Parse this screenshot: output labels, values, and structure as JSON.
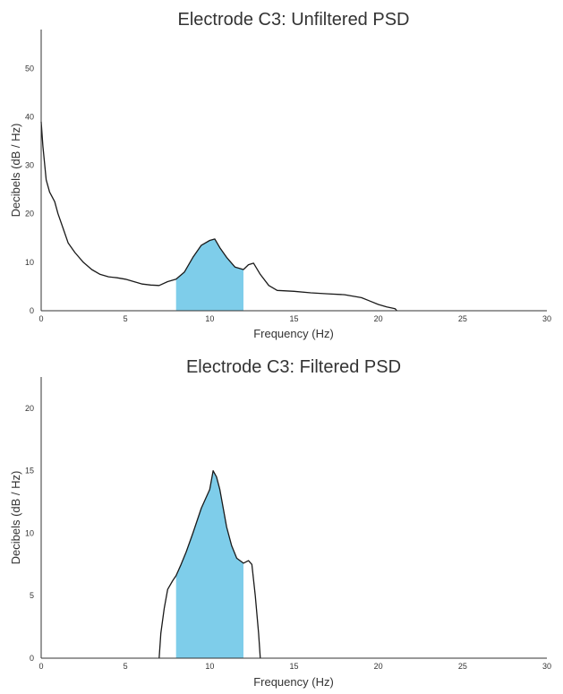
{
  "colors": {
    "band_fill": "#7ecdea",
    "line": "#1a1a1a",
    "axis": "#333333"
  },
  "chart_data": [
    {
      "type": "line",
      "title": "Electrode C3: Unfiltered PSD",
      "xlabel": "Frequency (Hz)",
      "ylabel": "Decibels (dB / Hz)",
      "xlim": [
        0,
        30
      ],
      "ylim": [
        0,
        58
      ],
      "xticks": [
        0,
        5,
        10,
        15,
        20,
        25,
        30
      ],
      "yticks": [
        0,
        10,
        20,
        30,
        40,
        50
      ],
      "grid": false,
      "shaded_band": [
        8,
        12
      ],
      "x": [
        0,
        0.1,
        0.3,
        0.5,
        0.8,
        1.0,
        1.3,
        1.6,
        2.0,
        2.5,
        3.0,
        3.5,
        4.0,
        4.5,
        5.0,
        5.5,
        6.0,
        6.5,
        7.0,
        7.5,
        8.0,
        8.5,
        9.0,
        9.5,
        10.0,
        10.3,
        10.6,
        11.0,
        11.5,
        12.0,
        12.3,
        12.6,
        13.0,
        13.5,
        14.0,
        15.0,
        16.0,
        17.0,
        18.0,
        19.0,
        19.5,
        20.0,
        20.5,
        21.0,
        21.1
      ],
      "y": [
        39,
        34,
        27,
        24.5,
        22.5,
        20,
        17,
        14,
        12,
        10,
        8.5,
        7.5,
        7,
        6.8,
        6.5,
        6,
        5.5,
        5.3,
        5.2,
        6,
        6.5,
        8,
        11,
        13.5,
        14.5,
        14.8,
        13,
        11,
        9,
        8.5,
        9.5,
        9.8,
        7.5,
        5.2,
        4.2,
        4,
        3.7,
        3.5,
        3.3,
        2.7,
        2,
        1.3,
        0.8,
        0.4,
        0
      ]
    },
    {
      "type": "line",
      "title": "Electrode C3: Filtered PSD",
      "xlabel": "Frequency (Hz)",
      "ylabel": "Decibels (dB / Hz)",
      "xlim": [
        0,
        30
      ],
      "ylim": [
        0,
        22.5
      ],
      "xticks": [
        0,
        5,
        10,
        15,
        20,
        25,
        30
      ],
      "yticks": [
        0,
        5,
        10,
        15,
        20
      ],
      "grid": false,
      "shaded_band": [
        8,
        12
      ],
      "x": [
        7.0,
        7.1,
        7.3,
        7.5,
        7.8,
        8.0,
        8.3,
        8.6,
        9.0,
        9.5,
        10.0,
        10.2,
        10.4,
        10.6,
        10.8,
        11.0,
        11.3,
        11.6,
        12.0,
        12.3,
        12.5,
        12.7,
        12.9,
        13.0
      ],
      "y": [
        0,
        2,
        4,
        5.5,
        6.2,
        6.6,
        7.5,
        8.5,
        10,
        12,
        13.5,
        15,
        14.5,
        13.5,
        12,
        10.5,
        9,
        8,
        7.6,
        7.8,
        7.5,
        5,
        2,
        0
      ]
    }
  ]
}
